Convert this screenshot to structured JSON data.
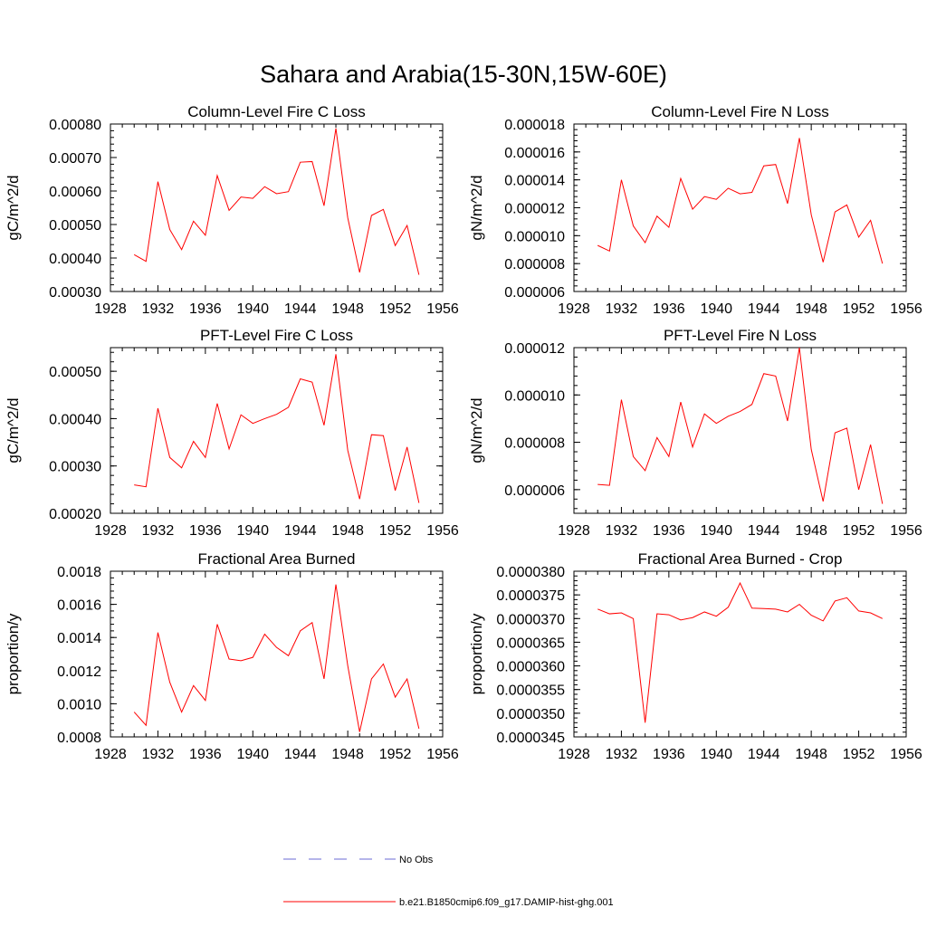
{
  "title": "Sahara and Arabia(15-30N,15W-60E)",
  "legend": {
    "entries": [
      {
        "label": "No Obs",
        "color": "#6b6bd6",
        "style": "dashed"
      },
      {
        "label": "b.e21.B1850cmip6.f09_g17.DAMIP-hist-ghg.001",
        "color": "#ff0000",
        "style": "solid"
      }
    ]
  },
  "series_color": "#ff0000",
  "chart_data": [
    {
      "type": "line",
      "title": "Column-Level Fire C Loss",
      "ylabel": "gC/m^2/d",
      "xlim": [
        1928,
        1956
      ],
      "ylim": [
        0.0003,
        0.0008
      ],
      "x_ticks": [
        1928,
        1932,
        1936,
        1940,
        1944,
        1948,
        1952,
        1956
      ],
      "y_ticks": [
        0.0003,
        0.0004,
        0.0005,
        0.0006,
        0.0007,
        0.0008
      ],
      "y_tick_labels": [
        "0.00030",
        "0.00040",
        "0.00050",
        "0.00060",
        "0.00070",
        "0.00080"
      ],
      "x": [
        1930,
        1931,
        1932,
        1933,
        1934,
        1935,
        1936,
        1937,
        1938,
        1939,
        1940,
        1941,
        1942,
        1943,
        1944,
        1945,
        1946,
        1947,
        1948,
        1949,
        1950,
        1951,
        1952,
        1953,
        1954
      ],
      "values": [
        0.00041,
        0.00039,
        0.000628,
        0.000485,
        0.000425,
        0.00051,
        0.000468,
        0.000646,
        0.000542,
        0.000582,
        0.000578,
        0.000613,
        0.000592,
        0.000598,
        0.000686,
        0.000688,
        0.000556,
        0.000787,
        0.00052,
        0.000357,
        0.000527,
        0.000545,
        0.000437,
        0.000497,
        0.00035
      ]
    },
    {
      "type": "line",
      "title": "Column-Level Fire N Loss",
      "ylabel": "gN/m^2/d",
      "xlim": [
        1928,
        1956
      ],
      "ylim": [
        6e-06,
        1.8e-05
      ],
      "x_ticks": [
        1928,
        1932,
        1936,
        1940,
        1944,
        1948,
        1952,
        1956
      ],
      "y_ticks": [
        6e-06,
        8e-06,
        1e-05,
        1.2e-05,
        1.4e-05,
        1.6e-05,
        1.8e-05
      ],
      "y_tick_labels": [
        "0.000006",
        "0.000008",
        "0.000010",
        "0.000012",
        "0.000014",
        "0.000016",
        "0.000018"
      ],
      "x": [
        1930,
        1931,
        1932,
        1933,
        1934,
        1935,
        1936,
        1937,
        1938,
        1939,
        1940,
        1941,
        1942,
        1943,
        1944,
        1945,
        1946,
        1947,
        1948,
        1949,
        1950,
        1951,
        1952,
        1953,
        1954
      ],
      "values": [
        9.3e-06,
        8.9e-06,
        1.4e-05,
        1.07e-05,
        9.5e-06,
        1.14e-05,
        1.06e-05,
        1.41e-05,
        1.19e-05,
        1.28e-05,
        1.26e-05,
        1.34e-05,
        1.3e-05,
        1.31e-05,
        1.5e-05,
        1.51e-05,
        1.23e-05,
        1.7e-05,
        1.15e-05,
        8.1e-06,
        1.17e-05,
        1.22e-05,
        9.9e-06,
        1.11e-05,
        8e-06
      ]
    },
    {
      "type": "line",
      "title": "PFT-Level Fire C Loss",
      "ylabel": "gC/m^2/d",
      "xlim": [
        1928,
        1956
      ],
      "ylim": [
        0.0002,
        0.00055
      ],
      "x_ticks": [
        1928,
        1932,
        1936,
        1940,
        1944,
        1948,
        1952,
        1956
      ],
      "y_ticks": [
        0.0002,
        0.0003,
        0.0004,
        0.0005
      ],
      "y_tick_labels": [
        "0.00020",
        "0.00030",
        "0.00040",
        "0.00050"
      ],
      "x": [
        1930,
        1931,
        1932,
        1933,
        1934,
        1935,
        1936,
        1937,
        1938,
        1939,
        1940,
        1941,
        1942,
        1943,
        1944,
        1945,
        1946,
        1947,
        1948,
        1949,
        1950,
        1951,
        1952,
        1953,
        1954
      ],
      "values": [
        0.00026,
        0.000256,
        0.000422,
        0.000318,
        0.000296,
        0.000352,
        0.000318,
        0.000432,
        0.000336,
        0.000408,
        0.00039,
        0.0004,
        0.000409,
        0.000424,
        0.000484,
        0.000477,
        0.000386,
        0.000536,
        0.000333,
        0.00023,
        0.000366,
        0.000364,
        0.000248,
        0.00034,
        0.000222
      ]
    },
    {
      "type": "line",
      "title": "PFT-Level Fire N Loss",
      "ylabel": "gN/m^2/d",
      "xlim": [
        1928,
        1956
      ],
      "ylim": [
        5e-06,
        1.2e-05
      ],
      "x_ticks": [
        1928,
        1932,
        1936,
        1940,
        1944,
        1948,
        1952,
        1956
      ],
      "y_ticks": [
        6e-06,
        8e-06,
        1e-05,
        1.2e-05
      ],
      "y_tick_labels": [
        "0.000006",
        "0.000008",
        "0.000010",
        "0.000012"
      ],
      "x": [
        1930,
        1931,
        1932,
        1933,
        1934,
        1935,
        1936,
        1937,
        1938,
        1939,
        1940,
        1941,
        1942,
        1943,
        1944,
        1945,
        1946,
        1947,
        1948,
        1949,
        1950,
        1951,
        1952,
        1953,
        1954
      ],
      "values": [
        6.22e-06,
        6.18e-06,
        9.8e-06,
        7.4e-06,
        6.8e-06,
        8.2e-06,
        7.4e-06,
        9.7e-06,
        7.8e-06,
        9.2e-06,
        8.8e-06,
        9.1e-06,
        9.3e-06,
        9.6e-06,
        1.09e-05,
        1.08e-05,
        8.9e-06,
        1.2e-05,
        7.7e-06,
        5.5e-06,
        8.4e-06,
        8.6e-06,
        6e-06,
        7.9e-06,
        5.4e-06
      ]
    },
    {
      "type": "line",
      "title": "Fractional Area Burned",
      "ylabel": "proportion/y",
      "xlim": [
        1928,
        1956
      ],
      "ylim": [
        0.0008,
        0.0018
      ],
      "x_ticks": [
        1928,
        1932,
        1936,
        1940,
        1944,
        1948,
        1952,
        1956
      ],
      "y_ticks": [
        0.0008,
        0.001,
        0.0012,
        0.0014,
        0.0016,
        0.0018
      ],
      "y_tick_labels": [
        "0.0008",
        "0.0010",
        "0.0012",
        "0.0014",
        "0.0016",
        "0.0018"
      ],
      "x": [
        1930,
        1931,
        1932,
        1933,
        1934,
        1935,
        1936,
        1937,
        1938,
        1939,
        1940,
        1941,
        1942,
        1943,
        1944,
        1945,
        1946,
        1947,
        1948,
        1949,
        1950,
        1951,
        1952,
        1953,
        1954
      ],
      "values": [
        0.00095,
        0.00087,
        0.00143,
        0.00113,
        0.00095,
        0.00111,
        0.00102,
        0.00148,
        0.00127,
        0.00126,
        0.00128,
        0.00142,
        0.00134,
        0.00129,
        0.00144,
        0.00149,
        0.00115,
        0.00172,
        0.00123,
        0.00083,
        0.00115,
        0.00124,
        0.00104,
        0.00115,
        0.00085
      ]
    },
    {
      "type": "line",
      "title": "Fractional Area Burned - Crop",
      "ylabel": "proportion/y",
      "xlim": [
        1928,
        1956
      ],
      "ylim": [
        3.45e-05,
        3.8e-05
      ],
      "x_ticks": [
        1928,
        1932,
        1936,
        1940,
        1944,
        1948,
        1952,
        1956
      ],
      "y_ticks": [
        3.45e-05,
        3.5e-05,
        3.55e-05,
        3.6e-05,
        3.65e-05,
        3.7e-05,
        3.75e-05,
        3.8e-05
      ],
      "y_tick_labels": [
        "0.0000345",
        "0.0000350",
        "0.0000355",
        "0.0000360",
        "0.0000365",
        "0.0000370",
        "0.0000375",
        "0.0000380"
      ],
      "x": [
        1930,
        1931,
        1932,
        1933,
        1934,
        1935,
        1936,
        1937,
        1938,
        1939,
        1940,
        1941,
        1942,
        1943,
        1944,
        1945,
        1946,
        1947,
        1948,
        1949,
        1950,
        1951,
        1952,
        1953,
        1954
      ],
      "values": [
        3.72e-05,
        3.71e-05,
        3.712e-05,
        3.7e-05,
        3.48e-05,
        3.71e-05,
        3.708e-05,
        3.697e-05,
        3.702e-05,
        3.714e-05,
        3.705e-05,
        3.724e-05,
        3.775e-05,
        3.722e-05,
        3.721e-05,
        3.72e-05,
        3.714e-05,
        3.73e-05,
        3.707e-05,
        3.695e-05,
        3.737e-05,
        3.744e-05,
        3.716e-05,
        3.712e-05,
        3.7e-05
      ]
    }
  ]
}
